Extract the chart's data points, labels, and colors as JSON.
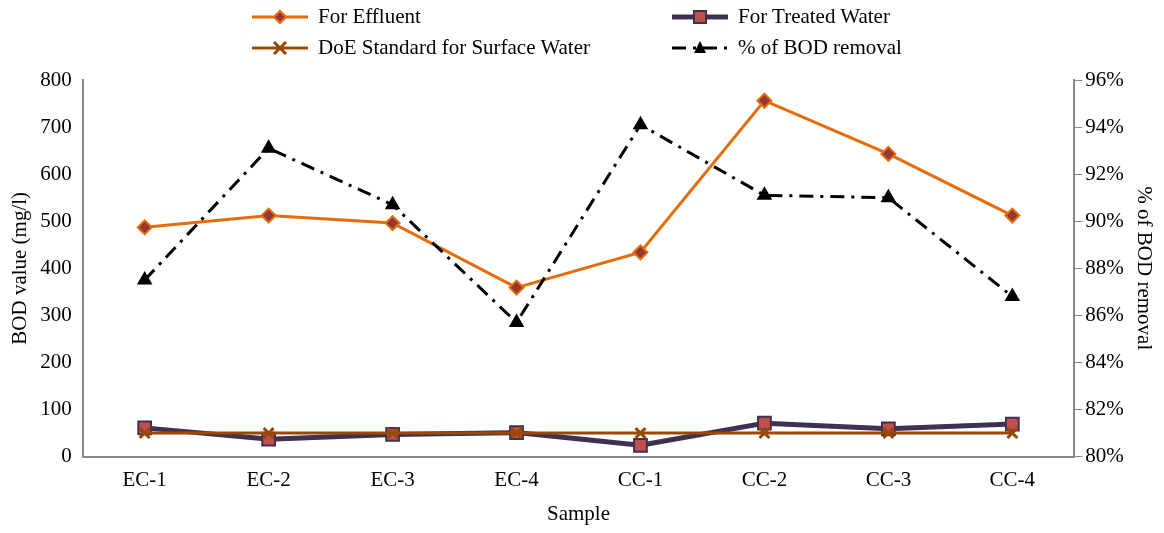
{
  "chart_data": {
    "type": "line",
    "xlabel": "Sample",
    "ylabel": "BOD value (mg/l)",
    "y2label": "% of BOD removal",
    "categories": [
      "EC-1",
      "EC-2",
      "EC-3",
      "EC-4",
      "CC-1",
      "CC-2",
      "CC-3",
      "CC-4"
    ],
    "series": [
      {
        "name": "For Effluent",
        "color": "#e46c0a",
        "marker": "diamond",
        "line_style": "solid",
        "values": [
          487,
          512,
          496,
          359,
          434,
          756,
          643,
          512
        ]
      },
      {
        "name": "For Treated Water",
        "color": "#403152",
        "marker": "square",
        "line_style": "solid",
        "values": [
          61,
          37,
          47,
          51,
          24,
          71,
          59,
          69
        ]
      },
      {
        "name": "DoE Standard for Surface Water",
        "color": "#984807",
        "marker": "cross",
        "line_style": "solid",
        "values": [
          50,
          50,
          50,
          50,
          50,
          50,
          50,
          50
        ]
      },
      {
        "name": "% of BOD removal",
        "color": "#000000",
        "marker": "triangle",
        "line_style": "dashed",
        "axis": "y2",
        "values": [
          87.5,
          93.1,
          90.7,
          85.7,
          94.1,
          91.1,
          91.0,
          86.8
        ]
      }
    ],
    "ylim": [
      0,
      800
    ],
    "yticks": [
      0,
      100,
      200,
      300,
      400,
      500,
      600,
      700,
      800
    ],
    "y2lim": [
      80,
      96
    ],
    "y2ticks": [
      {
        "value": 80,
        "label": "80%"
      },
      {
        "value": 82,
        "label": "82%"
      },
      {
        "value": 84,
        "label": "84%"
      },
      {
        "value": 86,
        "label": "86%"
      },
      {
        "value": 88,
        "label": "88%"
      },
      {
        "value": 90,
        "label": "90%"
      },
      {
        "value": 92,
        "label": "92%"
      },
      {
        "value": 94,
        "label": "94%"
      },
      {
        "value": 96,
        "label": "96%"
      }
    ],
    "grid": false,
    "legend": "top"
  }
}
